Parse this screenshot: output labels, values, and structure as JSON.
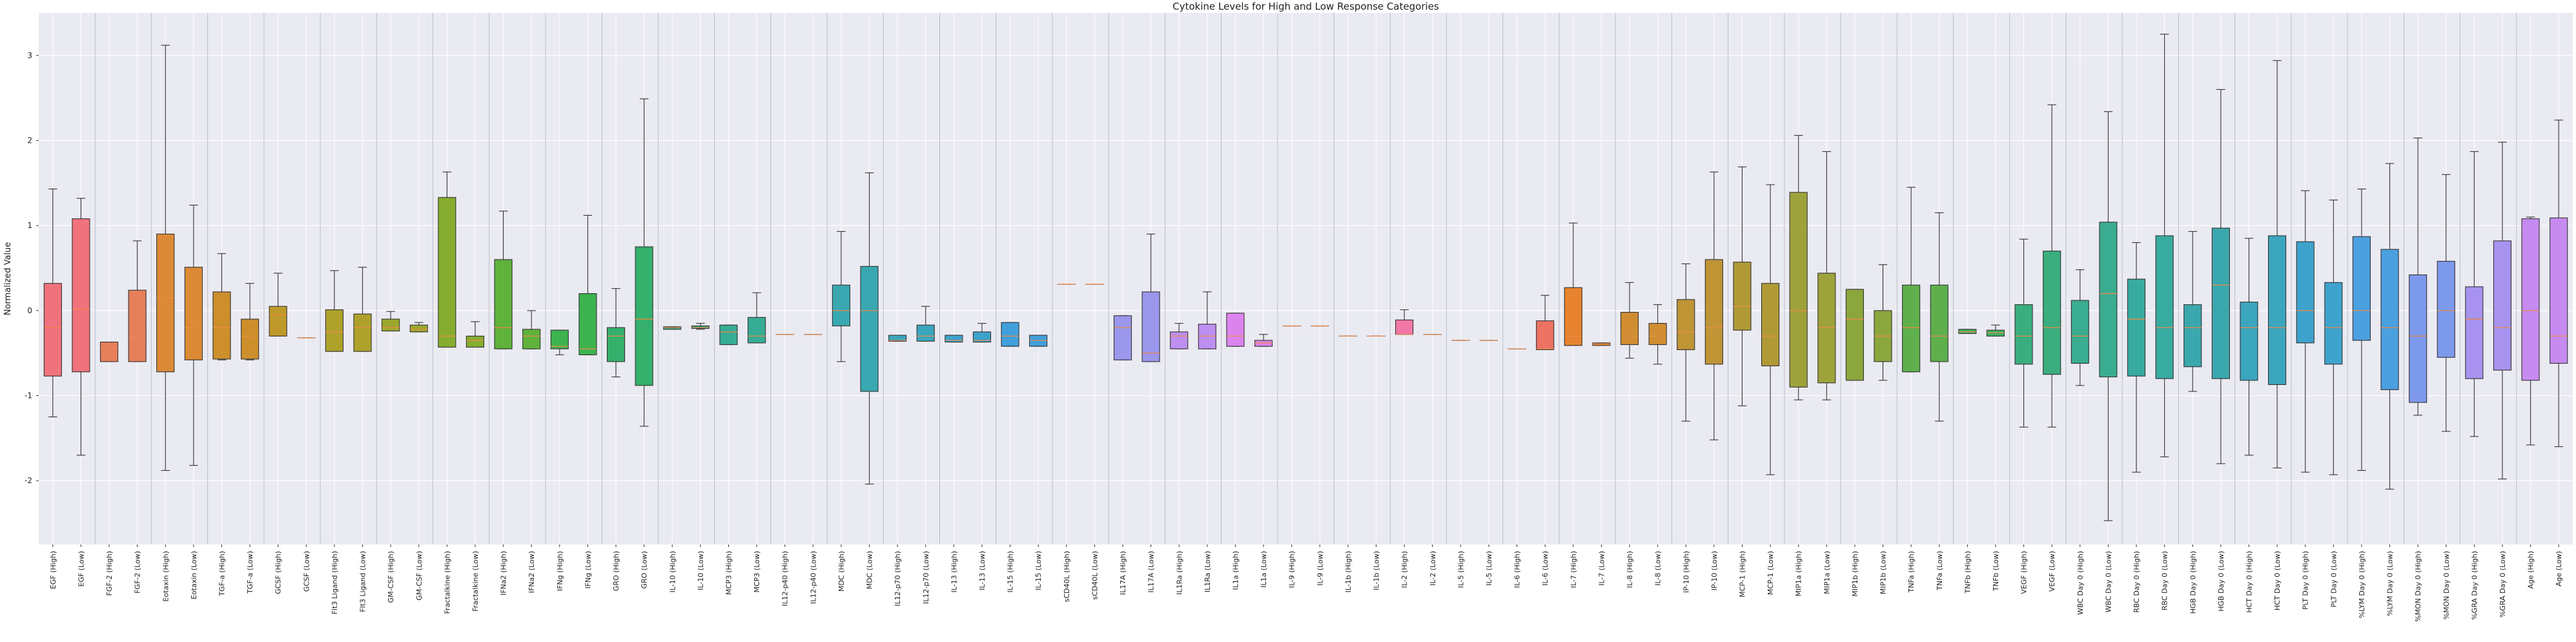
{
  "chart_data": {
    "type": "box",
    "title": "Cytokine Levels for High and Low Response Categories",
    "xlabel": "",
    "ylabel": "Normalized Value",
    "ylim": [
      -2.75,
      3.5
    ],
    "yticks": [
      -2,
      -1,
      0,
      1,
      2,
      3
    ],
    "grid": true,
    "categories": [
      "EGF (High)",
      "EGF (Low)",
      "FGF-2 (High)",
      "FGF-2 (Low)",
      "Eotaxin (High)",
      "Eotaxin (Low)",
      "TGF-a (High)",
      "TGF-a (Low)",
      "GCSF (High)",
      "GCSF (Low)",
      "Flt3 Ligand (High)",
      "Flt3 Ligand (Low)",
      "GM-CSF (High)",
      "GM-CSF (Low)",
      "Fractalkine (High)",
      "Fractalkine (Low)",
      "IFNa2 (High)",
      "IFNa2 (Low)",
      "IFNg (High)",
      "IFNg (Low)",
      "GRO (High)",
      "GRO (Low)",
      "IL-10 (High)",
      "IL-10 (Low)",
      "MCP3 (High)",
      "MCP3 (Low)",
      "IL12-p40 (High)",
      "IL12-p40 (Low)",
      "MDC (High)",
      "MDC (Low)",
      "IL12-p70 (High)",
      "IL12-p70 (Low)",
      "IL-13 (High)",
      "IL-13 (Low)",
      "IL-15 (High)",
      "IL-15 (Low)",
      "sCD40L (High)",
      "sCD40L (Low)",
      "IL17A (High)",
      "IL17A (Low)",
      "IL1Ra (High)",
      "IL1Ra (Low)",
      "IL1a (High)",
      "IL1a (Low)",
      "IL-9 (High)",
      "IL-9 (Low)",
      "IL-1b (High)",
      "IL-1b (Low)",
      "IL-2 (High)",
      "IL-2 (Low)",
      "IL-5 (High)",
      "IL-5 (Low)",
      "IL-6 (High)",
      "IL-6 (Low)",
      "IL-7 (High)",
      "IL-7 (Low)",
      "IL-8 (High)",
      "IL-8 (Low)",
      "IP-10 (High)",
      "IP-10 (Low)",
      "MCP-1 (High)",
      "MCP-1 (Low)",
      "MIP1a (High)",
      "MIP1a (Low)",
      "MIP1b (High)",
      "MIP1b (Low)",
      "TNFa (High)",
      "TNFa (Low)",
      "TNFb (High)",
      "TNFb (Low)",
      "VEGF (High)",
      "VEGF (Low)",
      "WBC Day 0 (High)",
      "WBC Day 0 (Low)",
      "RBC Day 0 (High)",
      "RBC Day 0 (Low)",
      "HGB Day 0 (High)",
      "HGB Day 0 (Low)",
      "HCT Day 0 (High)",
      "HCT Day 0 (Low)",
      "PLT Day 0 (High)",
      "PLT Day 0 (Low)",
      "%LYM Day 0 (High)",
      "%LYM Day 0 (Low)",
      "%MON Day 0 (High)",
      "%MON Day 0 (Low)",
      "%GRA Day 0 (High)",
      "%GRA Day 0 (Low)",
      "Age (High)",
      "Age (Low)"
    ],
    "boxes": [
      {
        "low": -1.25,
        "q1": -0.77,
        "median": -0.2,
        "q3": 0.32,
        "high": 1.43,
        "color": "#f0727c"
      },
      {
        "low": -1.7,
        "q1": -0.72,
        "median": 0.02,
        "q3": 1.08,
        "high": 1.32,
        "color": "#f0727c"
      },
      {
        "low": -0.6,
        "q1": -0.6,
        "median": -0.45,
        "q3": -0.37,
        "high": -0.37,
        "color": "#e67f5a"
      },
      {
        "low": -0.6,
        "q1": -0.6,
        "median": -0.3,
        "q3": 0.24,
        "high": 0.82,
        "color": "#e67f5a"
      },
      {
        "low": -1.88,
        "q1": -0.72,
        "median": 0.15,
        "q3": 0.9,
        "high": 3.12,
        "color": "#dc8a35"
      },
      {
        "low": -1.82,
        "q1": -0.58,
        "median": -0.2,
        "q3": 0.51,
        "high": 1.24,
        "color": "#dc8a35"
      },
      {
        "low": -0.58,
        "q1": -0.57,
        "median": -0.2,
        "q3": 0.22,
        "high": 0.67,
        "color": "#cd8f2c"
      },
      {
        "low": -0.58,
        "q1": -0.57,
        "median": -0.3,
        "q3": -0.1,
        "high": 0.32,
        "color": "#cd8f2c"
      },
      {
        "low": -0.3,
        "q1": -0.3,
        "median": -0.05,
        "q3": 0.05,
        "high": 0.44,
        "color": "#bf9a2a"
      },
      {
        "low": -0.32,
        "q1": -0.32,
        "median": -0.32,
        "q3": -0.32,
        "high": -0.32,
        "color": "#bf9a2a"
      },
      {
        "low": -0.48,
        "q1": -0.48,
        "median": -0.25,
        "q3": 0.01,
        "high": 0.47,
        "color": "#afa22b"
      },
      {
        "low": -0.48,
        "q1": -0.48,
        "median": -0.2,
        "q3": -0.04,
        "high": 0.51,
        "color": "#afa22b"
      },
      {
        "low": -0.24,
        "q1": -0.24,
        "median": -0.2,
        "q3": -0.1,
        "high": -0.01,
        "color": "#9ca82c"
      },
      {
        "low": -0.25,
        "q1": -0.25,
        "median": -0.22,
        "q3": -0.17,
        "high": -0.14,
        "color": "#9ca82c"
      },
      {
        "low": -0.43,
        "q1": -0.43,
        "median": -0.3,
        "q3": 1.33,
        "high": 1.63,
        "color": "#86ad2f"
      },
      {
        "low": -0.43,
        "q1": -0.43,
        "median": -0.35,
        "q3": -0.3,
        "high": -0.13,
        "color": "#86ad2f"
      },
      {
        "low": -0.45,
        "q1": -0.45,
        "median": -0.2,
        "q3": 0.6,
        "high": 1.17,
        "color": "#5fb23b"
      },
      {
        "low": -0.45,
        "q1": -0.45,
        "median": -0.3,
        "q3": -0.22,
        "high": 0.0,
        "color": "#5fb23b"
      },
      {
        "low": -0.52,
        "q1": -0.45,
        "median": -0.42,
        "q3": -0.23,
        "high": -0.23,
        "color": "#3db34f"
      },
      {
        "low": -0.52,
        "q1": -0.52,
        "median": -0.45,
        "q3": 0.2,
        "high": 1.12,
        "color": "#3db34f"
      },
      {
        "low": -0.78,
        "q1": -0.6,
        "median": -0.3,
        "q3": -0.2,
        "high": 0.26,
        "color": "#35b06d"
      },
      {
        "low": -1.36,
        "q1": -0.88,
        "median": -0.1,
        "q3": 0.75,
        "high": 2.49,
        "color": "#35b06d"
      },
      {
        "low": -0.22,
        "q1": -0.22,
        "median": -0.2,
        "q3": -0.19,
        "high": -0.19,
        "color": "#36ae83"
      },
      {
        "low": -0.22,
        "q1": -0.21,
        "median": -0.2,
        "q3": -0.18,
        "high": -0.15,
        "color": "#36ae83"
      },
      {
        "low": -0.4,
        "q1": -0.4,
        "median": -0.25,
        "q3": -0.17,
        "high": -0.17,
        "color": "#37ac94"
      },
      {
        "low": -0.38,
        "q1": -0.38,
        "median": -0.3,
        "q3": -0.08,
        "high": 0.21,
        "color": "#37ac94"
      },
      {
        "low": -0.28,
        "q1": -0.28,
        "median": -0.28,
        "q3": -0.28,
        "high": -0.28,
        "color": "#38aaa3"
      },
      {
        "low": -0.28,
        "q1": -0.28,
        "median": -0.28,
        "q3": -0.28,
        "high": -0.28,
        "color": "#38aaa3"
      },
      {
        "low": -0.6,
        "q1": -0.18,
        "median": 0.0,
        "q3": 0.3,
        "high": 0.93,
        "color": "#39a8b1"
      },
      {
        "low": -2.04,
        "q1": -0.95,
        "median": 0.0,
        "q3": 0.52,
        "high": 1.62,
        "color": "#39a8b1"
      },
      {
        "low": -0.36,
        "q1": -0.36,
        "median": -0.35,
        "q3": -0.29,
        "high": -0.29,
        "color": "#3aa6bd"
      },
      {
        "low": -0.36,
        "q1": -0.36,
        "median": -0.3,
        "q3": -0.17,
        "high": 0.05,
        "color": "#3aa6bd"
      },
      {
        "low": -0.37,
        "q1": -0.37,
        "median": -0.35,
        "q3": -0.29,
        "high": -0.29,
        "color": "#3ca3cb"
      },
      {
        "low": -0.37,
        "q1": -0.37,
        "median": -0.35,
        "q3": -0.25,
        "high": -0.15,
        "color": "#3ca3cb"
      },
      {
        "low": -0.42,
        "q1": -0.42,
        "median": -0.3,
        "q3": -0.14,
        "high": -0.14,
        "color": "#41a0db"
      },
      {
        "low": -0.42,
        "q1": -0.42,
        "median": -0.35,
        "q3": -0.29,
        "high": -0.29,
        "color": "#41a0db"
      },
      {
        "low": 0.31,
        "q1": 0.31,
        "median": 0.31,
        "q3": 0.31,
        "high": 0.31,
        "color": "#6a9de8"
      },
      {
        "low": 0.31,
        "q1": 0.31,
        "median": 0.31,
        "q3": 0.31,
        "high": 0.31,
        "color": "#6a9de8"
      },
      {
        "low": -0.58,
        "q1": -0.58,
        "median": -0.2,
        "q3": -0.06,
        "high": -0.06,
        "color": "#9a97ec"
      },
      {
        "low": -0.6,
        "q1": -0.6,
        "median": -0.5,
        "q3": 0.22,
        "high": 0.9,
        "color": "#9a97ec"
      },
      {
        "low": -0.45,
        "q1": -0.45,
        "median": -0.3,
        "q3": -0.25,
        "high": -0.15,
        "color": "#bd8ff0"
      },
      {
        "low": -0.45,
        "q1": -0.45,
        "median": -0.3,
        "q3": -0.16,
        "high": 0.22,
        "color": "#bd8ff0"
      },
      {
        "low": -0.42,
        "q1": -0.42,
        "median": -0.3,
        "q3": -0.03,
        "high": -0.03,
        "color": "#dc84ee"
      },
      {
        "low": -0.42,
        "q1": -0.42,
        "median": -0.38,
        "q3": -0.35,
        "high": -0.28,
        "color": "#dc84ee"
      },
      {
        "low": -0.18,
        "q1": -0.18,
        "median": -0.18,
        "q3": -0.18,
        "high": -0.18,
        "color": "#ea7ed6"
      },
      {
        "low": -0.18,
        "q1": -0.18,
        "median": -0.18,
        "q3": -0.18,
        "high": -0.18,
        "color": "#ea7ed6"
      },
      {
        "low": -0.3,
        "q1": -0.3,
        "median": -0.3,
        "q3": -0.3,
        "high": -0.3,
        "color": "#ef7bbd"
      },
      {
        "low": -0.3,
        "q1": -0.3,
        "median": -0.3,
        "q3": -0.3,
        "high": -0.3,
        "color": "#ef7bbd"
      },
      {
        "low": -0.28,
        "q1": -0.28,
        "median": -0.28,
        "q3": -0.11,
        "high": 0.01,
        "color": "#f178a4"
      },
      {
        "low": -0.28,
        "q1": -0.28,
        "median": -0.28,
        "q3": -0.28,
        "high": -0.28,
        "color": "#f178a4"
      },
      {
        "low": -0.35,
        "q1": -0.35,
        "median": -0.35,
        "q3": -0.35,
        "high": -0.35,
        "color": "#f0727c"
      },
      {
        "low": -0.35,
        "q1": -0.35,
        "median": -0.35,
        "q3": -0.35,
        "high": -0.35,
        "color": "#f0727c"
      },
      {
        "low": -0.45,
        "q1": -0.45,
        "median": -0.45,
        "q3": -0.45,
        "high": -0.45,
        "color": "#ec7262"
      },
      {
        "low": -0.46,
        "q1": -0.46,
        "median": -0.45,
        "q3": -0.12,
        "high": 0.18,
        "color": "#ec7262"
      },
      {
        "low": -0.41,
        "q1": -0.41,
        "median": -0.3,
        "q3": 0.27,
        "high": 1.03,
        "color": "#e7832f"
      },
      {
        "low": -0.41,
        "q1": -0.41,
        "median": -0.39,
        "q3": -0.38,
        "high": -0.38,
        "color": "#e7832f"
      },
      {
        "low": -0.56,
        "q1": -0.4,
        "median": -0.3,
        "q3": -0.02,
        "high": 0.33,
        "color": "#d08d32"
      },
      {
        "low": -0.63,
        "q1": -0.4,
        "median": -0.3,
        "q3": -0.15,
        "high": 0.07,
        "color": "#d08d32"
      },
      {
        "low": -1.3,
        "q1": -0.46,
        "median": -0.25,
        "q3": 0.13,
        "high": 0.55,
        "color": "#c09536"
      },
      {
        "low": -1.52,
        "q1": -0.63,
        "median": -0.2,
        "q3": 0.6,
        "high": 1.63,
        "color": "#c09536"
      },
      {
        "low": -1.12,
        "q1": -0.23,
        "median": 0.05,
        "q3": 0.57,
        "high": 1.69,
        "color": "#b09a36"
      },
      {
        "low": -1.93,
        "q1": -0.65,
        "median": -0.3,
        "q3": 0.32,
        "high": 1.48,
        "color": "#b09a36"
      },
      {
        "low": -1.05,
        "q1": -0.9,
        "median": 0.0,
        "q3": 1.39,
        "high": 2.06,
        "color": "#9ea23b"
      },
      {
        "low": -1.05,
        "q1": -0.85,
        "median": -0.2,
        "q3": 0.44,
        "high": 1.87,
        "color": "#9ea23b"
      },
      {
        "low": -0.82,
        "q1": -0.82,
        "median": -0.1,
        "q3": 0.25,
        "high": 0.25,
        "color": "#8ca63e"
      },
      {
        "low": -0.82,
        "q1": -0.6,
        "median": -0.3,
        "q3": 0.0,
        "high": 0.54,
        "color": "#8ca63e"
      },
      {
        "low": -0.72,
        "q1": -0.72,
        "median": -0.2,
        "q3": 0.3,
        "high": 1.45,
        "color": "#5fb04c"
      },
      {
        "low": -1.3,
        "q1": -0.6,
        "median": -0.3,
        "q3": 0.3,
        "high": 1.15,
        "color": "#5fb04c"
      },
      {
        "low": -0.27,
        "q1": -0.27,
        "median": -0.25,
        "q3": -0.22,
        "high": -0.22,
        "color": "#3fb165"
      },
      {
        "low": -0.3,
        "q1": -0.3,
        "median": -0.26,
        "q3": -0.23,
        "high": -0.17,
        "color": "#3fb165"
      },
      {
        "low": -1.37,
        "q1": -0.63,
        "median": -0.3,
        "q3": 0.07,
        "high": 0.84,
        "color": "#3aae7e"
      },
      {
        "low": -1.37,
        "q1": -0.75,
        "median": -0.2,
        "q3": 0.7,
        "high": 2.42,
        "color": "#3aae7e"
      },
      {
        "low": -0.88,
        "q1": -0.62,
        "median": -0.3,
        "q3": 0.12,
        "high": 0.48,
        "color": "#3aac90"
      },
      {
        "low": -2.47,
        "q1": -0.78,
        "median": 0.2,
        "q3": 1.04,
        "high": 2.34,
        "color": "#3aac90"
      },
      {
        "low": -1.9,
        "q1": -0.77,
        "median": -0.1,
        "q3": 0.37,
        "high": 0.8,
        "color": "#38aba0"
      },
      {
        "low": -1.72,
        "q1": -0.8,
        "median": -0.2,
        "q3": 0.88,
        "high": 3.25,
        "color": "#38aba0"
      },
      {
        "low": -0.95,
        "q1": -0.66,
        "median": -0.2,
        "q3": 0.07,
        "high": 0.93,
        "color": "#3aa8ad"
      },
      {
        "low": -1.8,
        "q1": -0.8,
        "median": 0.3,
        "q3": 0.97,
        "high": 2.6,
        "color": "#3aa8ad"
      },
      {
        "low": -1.7,
        "q1": -0.82,
        "median": -0.2,
        "q3": 0.1,
        "high": 0.85,
        "color": "#3ca6be"
      },
      {
        "low": -1.85,
        "q1": -0.87,
        "median": -0.2,
        "q3": 0.88,
        "high": 2.94,
        "color": "#3ca6be"
      },
      {
        "low": -1.9,
        "q1": -0.38,
        "median": 0.0,
        "q3": 0.81,
        "high": 1.41,
        "color": "#3ea3cc"
      },
      {
        "low": -1.93,
        "q1": -0.63,
        "median": -0.2,
        "q3": 0.33,
        "high": 1.3,
        "color": "#3ea3cc"
      },
      {
        "low": -1.88,
        "q1": -0.35,
        "median": 0.0,
        "q3": 0.87,
        "high": 1.43,
        "color": "#4ba0e0"
      },
      {
        "low": -2.1,
        "q1": -0.93,
        "median": -0.2,
        "q3": 0.72,
        "high": 1.73,
        "color": "#4ba0e0"
      },
      {
        "low": -1.23,
        "q1": -1.08,
        "median": -0.3,
        "q3": 0.42,
        "high": 2.03,
        "color": "#7d99ec"
      },
      {
        "low": -1.42,
        "q1": -0.55,
        "median": 0.0,
        "q3": 0.58,
        "high": 1.6,
        "color": "#7d99ec"
      },
      {
        "low": -1.48,
        "q1": -0.8,
        "median": -0.1,
        "q3": 0.28,
        "high": 1.87,
        "color": "#a793ef"
      },
      {
        "low": -1.98,
        "q1": -0.7,
        "median": -0.2,
        "q3": 0.82,
        "high": 1.98,
        "color": "#a793ef"
      },
      {
        "low": -1.58,
        "q1": -0.82,
        "median": 0.0,
        "q3": 1.08,
        "high": 1.1,
        "color": "#c68bf0"
      },
      {
        "low": -1.6,
        "q1": -0.62,
        "median": -0.3,
        "q3": 1.09,
        "high": 2.24,
        "color": "#c68bf0"
      }
    ]
  }
}
